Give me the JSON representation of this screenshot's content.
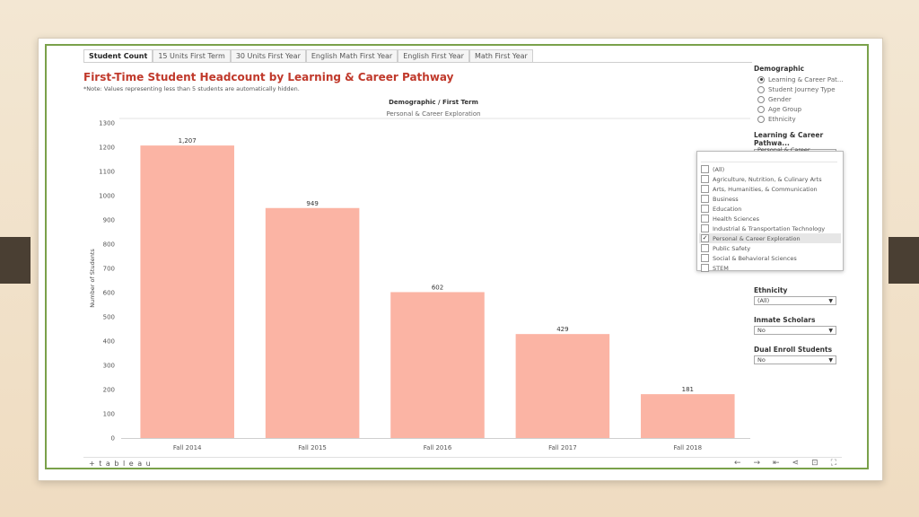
{
  "tabs": [
    "Student Count",
    "15 Units First Term",
    "30 Units First Year",
    "English Math First Year",
    "English First Year",
    "Math First Year"
  ],
  "header": {
    "title": "First-Time Student Headcount by Learning & Career Pathway",
    "note": "*Note: Values representing less than 5 students are automatically hidden."
  },
  "chart_data": {
    "type": "bar",
    "title": "Demographic / First Term",
    "subtitle": "Personal & Career Exploration",
    "ylabel": "Number of Students",
    "xlabel": "",
    "categories": [
      "Fall 2014",
      "Fall 2015",
      "Fall 2016",
      "Fall 2017",
      "Fall 2018"
    ],
    "values": [
      1207,
      949,
      602,
      429,
      181
    ],
    "value_labels": [
      "1,207",
      "949",
      "602",
      "429",
      "181"
    ],
    "ylim": [
      0,
      1300
    ],
    "yticks": [
      0,
      100,
      200,
      300,
      400,
      500,
      600,
      700,
      800,
      900,
      1000,
      1100,
      1200,
      1300
    ],
    "bar_color": "#fbb4a4",
    "grid": false,
    "legend": "none"
  },
  "sidebar": {
    "demographic_label": "Demographic",
    "demographic_options": [
      {
        "label": "Learning & Career Pat...",
        "selected": true
      },
      {
        "label": "Student Journey Type",
        "selected": false
      },
      {
        "label": "Gender",
        "selected": false
      },
      {
        "label": "Age Group",
        "selected": false
      },
      {
        "label": "Ethnicity",
        "selected": false
      }
    ],
    "pathway_label": "Learning & Career Pathwa...",
    "pathway_value": "Personal & Career Explo...",
    "ethnicity_label": "Ethnicity",
    "ethnicity_value": "(All)",
    "inmate_label": "Inmate Scholars",
    "inmate_value": "No",
    "dual_label": "Dual Enroll Students",
    "dual_value": "No"
  },
  "filter_popup": {
    "items": [
      {
        "label": "(All)",
        "checked": false
      },
      {
        "label": "Agriculture, Nutrition, & Culinary Arts",
        "checked": false
      },
      {
        "label": "Arts, Humanities, & Communication",
        "checked": false
      },
      {
        "label": "Business",
        "checked": false
      },
      {
        "label": "Education",
        "checked": false
      },
      {
        "label": "Health Sciences",
        "checked": false
      },
      {
        "label": "Industrial & Transportation Technology",
        "checked": false
      },
      {
        "label": "Personal & Career Exploration",
        "checked": true
      },
      {
        "label": "Public Safety",
        "checked": false
      },
      {
        "label": "Social & Behavioral Sciences",
        "checked": false
      },
      {
        "label": "STEM",
        "checked": false
      }
    ]
  },
  "toolbar": {
    "logo": "+ t a b l e a u",
    "icons": [
      "undo-icon",
      "redo-icon",
      "revert-icon",
      "share-icon",
      "download-icon",
      "fullscreen-icon"
    ]
  },
  "colors": {
    "title": "#c0392b",
    "frame_border": "#7aa14a",
    "clip": "#4a3f33"
  }
}
